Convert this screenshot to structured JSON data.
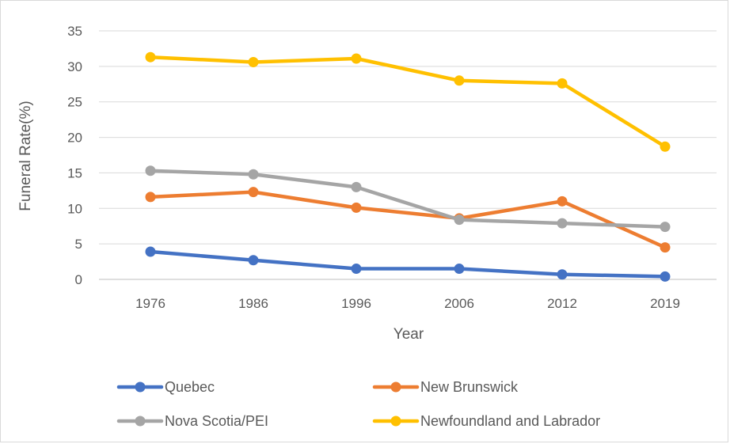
{
  "chart_data": {
    "type": "line",
    "title": "",
    "xlabel": "Year",
    "ylabel": "Funeral Rate(%)",
    "categories": [
      "1976",
      "1986",
      "1996",
      "2006",
      "2012",
      "2019"
    ],
    "ylim": [
      0,
      35
    ],
    "yticks": [
      0,
      5,
      10,
      15,
      20,
      25,
      30,
      35
    ],
    "grid": true,
    "legend_position": "bottom",
    "series": [
      {
        "name": "Quebec",
        "color": "#4472c4",
        "values": [
          3.9,
          2.7,
          1.5,
          1.5,
          0.7,
          0.4
        ]
      },
      {
        "name": "New Brunswick",
        "color": "#ed7d31",
        "values": [
          11.6,
          12.3,
          10.1,
          8.6,
          11.0,
          4.5
        ]
      },
      {
        "name": "Nova Scotia/PEI",
        "color": "#a5a5a5",
        "values": [
          15.3,
          14.8,
          13.0,
          8.4,
          7.9,
          7.4
        ]
      },
      {
        "name": "Newfoundland and Labrador",
        "color": "#ffc000",
        "values": [
          31.3,
          30.6,
          31.1,
          28.0,
          27.6,
          18.7
        ]
      }
    ]
  }
}
